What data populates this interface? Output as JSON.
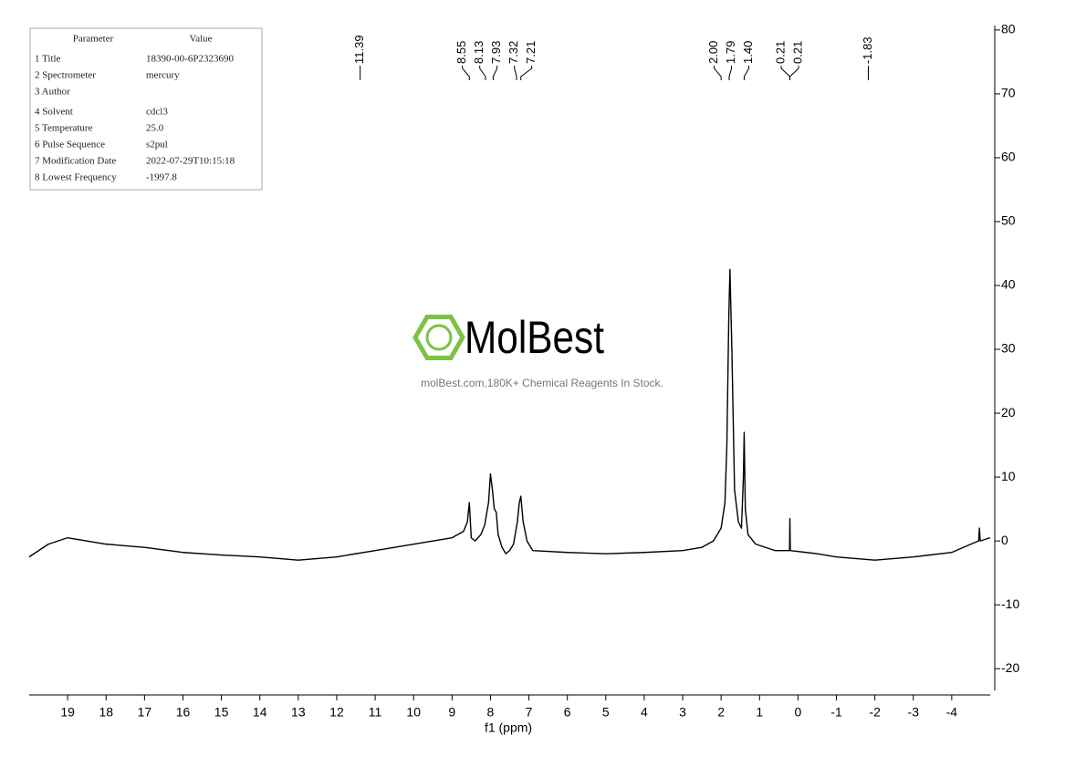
{
  "chart_data": {
    "type": "line",
    "x": [
      20,
      19.5,
      19,
      18.5,
      18,
      17,
      16,
      15,
      14,
      13,
      12,
      11,
      10,
      9.5,
      9,
      8.7,
      8.6,
      8.55,
      8.5,
      8.4,
      8.25,
      8.15,
      8.05,
      8,
      7.95,
      7.9,
      7.85,
      7.8,
      7.7,
      7.6,
      7.5,
      7.4,
      7.3,
      7.25,
      7.21,
      7.15,
      7.05,
      6.9,
      6,
      5,
      4,
      3,
      2.5,
      2.2,
      2,
      1.9,
      1.85,
      1.8,
      1.77,
      1.72,
      1.65,
      1.55,
      1.47,
      1.42,
      1.4,
      1.37,
      1.3,
      1.1,
      0.6,
      0.22,
      0.21,
      0.2,
      -0.5,
      -1,
      -2,
      -3,
      -4,
      -4.5,
      -4.7,
      -4.72,
      -4.74,
      -5
    ],
    "values": [
      -2.5,
      -0.5,
      0.5,
      0,
      -0.5,
      -1,
      -1.8,
      -2.2,
      -2.5,
      -3,
      -2.5,
      -1.5,
      -0.5,
      0,
      0.5,
      1.5,
      3,
      6,
      0.5,
      0,
      1,
      2.5,
      6,
      10.5,
      8,
      5,
      4.5,
      1,
      -1,
      -2,
      -1.5,
      -0.5,
      3,
      6,
      7,
      3,
      0,
      -1.5,
      -1.8,
      -2,
      -1.8,
      -1.5,
      -1,
      0,
      2,
      6,
      15,
      35,
      42.5,
      30,
      8,
      3,
      2,
      10,
      17,
      5,
      1,
      -0.5,
      -1.5,
      -1.5,
      3.5,
      -1.5,
      -2,
      -2.5,
      -3,
      -2.5,
      -1.8,
      -0.5,
      0,
      2,
      0,
      0.5
    ],
    "color": "#000000",
    "x_label": "f1 (ppm)",
    "xlim": [
      20,
      -5
    ],
    "xticks": [
      19,
      18,
      17,
      16,
      15,
      14,
      13,
      12,
      11,
      10,
      9,
      8,
      7,
      6,
      5,
      4,
      3,
      2,
      1,
      0,
      -1,
      -2,
      -3,
      -4
    ],
    "ylim": [
      -23.4,
      80.7
    ],
    "yticks": [
      -20,
      -10,
      0,
      10,
      20,
      30,
      40,
      50,
      60,
      70,
      80
    ],
    "peaks": [
      11.39,
      8.55,
      8.13,
      7.93,
      7.32,
      7.21,
      2,
      1.79,
      1.4,
      0.21,
      0.21,
      -1.83
    ],
    "peak_labels": [
      "11.39",
      "8.55",
      "8.13",
      "7.93",
      "7.32",
      "7.21",
      "2.00",
      "1.79",
      "1.40",
      "0.21",
      "0.21",
      "-1.83"
    ]
  },
  "parameter_table": {
    "header": [
      "Parameter",
      "Value"
    ],
    "rows": [
      [
        "1 Title",
        "18390-00-6P2323690"
      ],
      [
        "2 Spectrometer",
        "mercury"
      ],
      [
        "3 Author"
      ],
      [
        "4 Solvent",
        "cdcl3"
      ],
      [
        "5 Temperature",
        "25.0"
      ],
      [
        "6 Pulse Sequence",
        "s2pul"
      ],
      [
        "7 Modification Date",
        "2022-07-29T10:15:18"
      ],
      [
        "8 Lowest Frequency",
        "-1997.8"
      ]
    ]
  },
  "watermark": {
    "brand": "MolBest",
    "tagline": "molBest.com,180K+ Chemical Reagents In Stock."
  }
}
